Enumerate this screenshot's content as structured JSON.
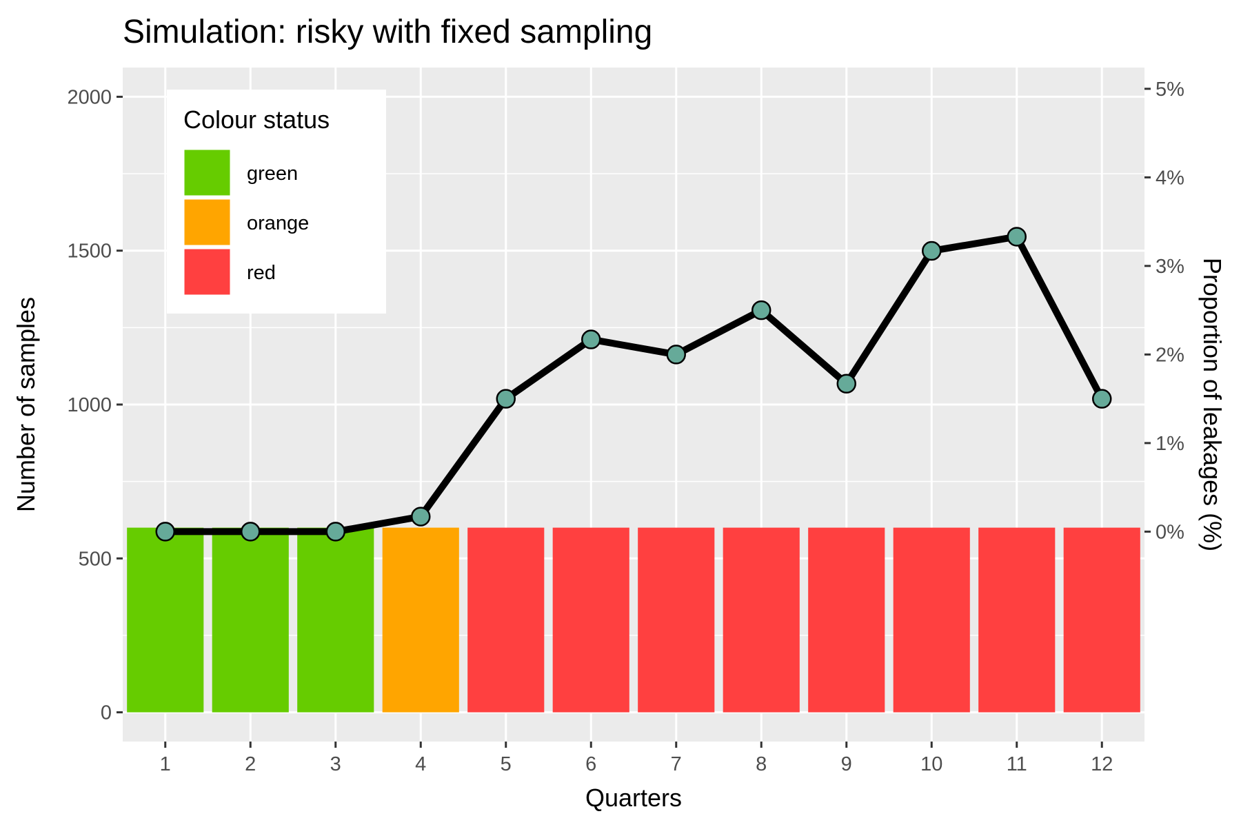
{
  "chart_data": {
    "type": "bar",
    "title": "Simulation: risky with fixed sampling",
    "xlabel": "Quarters",
    "ylabel": "Number of samples",
    "y2label": "Proportion of leakages (%)",
    "categories": [
      "1",
      "2",
      "3",
      "4",
      "5",
      "6",
      "7",
      "8",
      "9",
      "10",
      "11",
      "12"
    ],
    "ylim": [
      -95,
      2095
    ],
    "yticks": [
      "0",
      "500",
      "1000",
      "1500",
      "2000"
    ],
    "y2lim": [
      -0.0237,
      0.0524
    ],
    "y2ticks": [
      "0%",
      "1%",
      "2%",
      "3%",
      "4%",
      "5%"
    ],
    "series": [
      {
        "name": "Number of samples",
        "type": "bar",
        "values": [
          600,
          600,
          600,
          600,
          600,
          600,
          600,
          600,
          600,
          600,
          600,
          600
        ],
        "status": [
          "green",
          "green",
          "green",
          "orange",
          "red",
          "red",
          "red",
          "red",
          "red",
          "red",
          "red",
          "red"
        ]
      },
      {
        "name": "Proportion of leakages",
        "type": "line",
        "axis": "right",
        "values": [
          0.0,
          0.0,
          0.0,
          0.0017,
          0.015,
          0.0217,
          0.02,
          0.025,
          0.0167,
          0.0317,
          0.0333,
          0.015
        ]
      }
    ],
    "legend": {
      "title": "Colour status",
      "position": "top-left",
      "items": [
        {
          "label": "green",
          "color": "#66CC00"
        },
        {
          "label": "orange",
          "color": "#FFA500"
        },
        {
          "label": "red",
          "color": "#FF4040"
        }
      ]
    },
    "grid": true,
    "colors": {
      "panel": "#EBEBEB",
      "grid": "#FFFFFF",
      "line": "#000000",
      "point_fill": "#66AA99",
      "green": "#66CC00",
      "orange": "#FFA500",
      "red": "#FF4040"
    }
  }
}
